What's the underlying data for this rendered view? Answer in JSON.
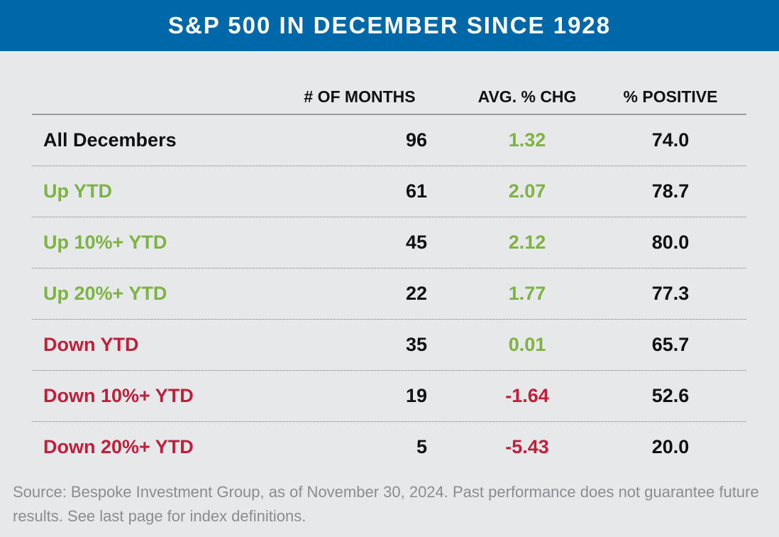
{
  "title": "S&P 500 IN DECEMBER SINCE 1928",
  "columns": [
    "# OF MONTHS",
    "AVG. % CHG",
    "% POSITIVE"
  ],
  "rows": [
    {
      "label": "All Decembers",
      "months": "96",
      "avg_chg": "1.32",
      "pct_positive": "74.0"
    },
    {
      "label": "Up YTD",
      "months": "61",
      "avg_chg": "2.07",
      "pct_positive": "78.7"
    },
    {
      "label": "Up 10%+ YTD",
      "months": "45",
      "avg_chg": "2.12",
      "pct_positive": "80.0"
    },
    {
      "label": "Up 20%+ YTD",
      "months": "22",
      "avg_chg": "1.77",
      "pct_positive": "77.3"
    },
    {
      "label": "Down YTD",
      "months": "35",
      "avg_chg": "0.01",
      "pct_positive": "65.7"
    },
    {
      "label": "Down 10%+ YTD",
      "months": "19",
      "avg_chg": "-1.64",
      "pct_positive": "52.6"
    },
    {
      "label": "Down 20%+ YTD",
      "months": "5",
      "avg_chg": "-5.43",
      "pct_positive": "20.0"
    }
  ],
  "colors": {
    "header_bg": "#0068a8",
    "positive": "#7cb342",
    "negative": "#c01f3a",
    "text": "#111111",
    "background": "#e6e8ea",
    "footnote": "#8a8d90"
  },
  "footnote": "Source: Bespoke Investment Group, as of November 30, 2024. Past performance does not guarantee future results. See last page for index definitions.",
  "chart_data": {
    "type": "table",
    "title": "S&P 500 IN DECEMBER SINCE 1928",
    "columns": [
      "# OF MONTHS",
      "AVG. % CHG",
      "% POSITIVE"
    ],
    "row_labels": [
      "All Decembers",
      "Up YTD",
      "Up 10%+ YTD",
      "Up 20%+ YTD",
      "Down YTD",
      "Down 10%+ YTD",
      "Down 20%+ YTD"
    ],
    "values": [
      [
        96,
        1.32,
        74.0
      ],
      [
        61,
        2.07,
        78.7
      ],
      [
        45,
        2.12,
        80.0
      ],
      [
        22,
        1.77,
        77.3
      ],
      [
        35,
        0.01,
        65.7
      ],
      [
        19,
        -1.64,
        52.6
      ],
      [
        5,
        -5.43,
        20.0
      ]
    ]
  }
}
